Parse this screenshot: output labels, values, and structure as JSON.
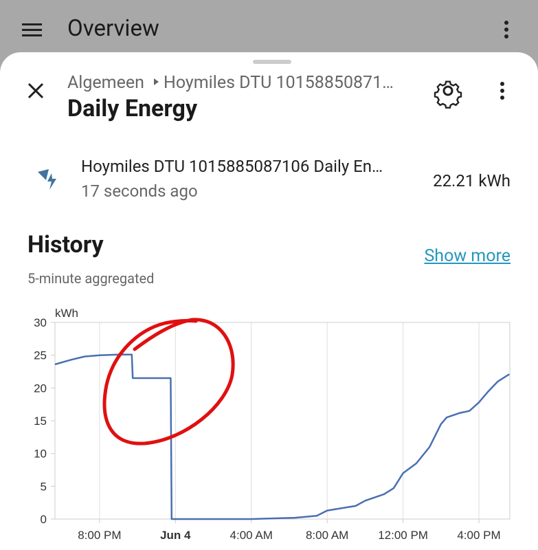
{
  "topbar": {
    "title": "Overview"
  },
  "dialog": {
    "breadcrumb": [
      "Algemeen",
      "Hoymiles DTU 10158850871…"
    ],
    "title": "Daily Energy"
  },
  "entity": {
    "name": "Hoymiles DTU 1015885087106 Daily En…",
    "updated": "17 seconds ago",
    "state": "22.21 kWh"
  },
  "history": {
    "title": "History",
    "link": "Show more",
    "subtitle": "5-minute aggregated"
  },
  "chart_data": {
    "type": "line",
    "y_label": "kWh",
    "color": "#4a6fb0",
    "x": [
      17.65,
      18.5,
      19.2,
      20,
      21,
      21.7,
      21.75,
      23.75,
      23.8,
      28,
      30.3,
      31.45,
      32,
      33.5,
      34,
      35,
      35.5,
      36,
      36.7,
      37.4,
      38,
      38.3,
      39,
      39.5,
      40,
      40.5,
      41,
      41.6
    ],
    "values": [
      23.6,
      24.3,
      24.8,
      25.0,
      25.1,
      25.1,
      21.5,
      21.5,
      0,
      0,
      0.2,
      0.5,
      1.3,
      2.0,
      2.8,
      3.8,
      4.7,
      7.0,
      8.5,
      11,
      14.5,
      15.5,
      16.2,
      16.5,
      17.8,
      19.5,
      21,
      22.1
    ],
    "xlim": [
      17.65,
      41.63
    ],
    "xticks": [
      {
        "value": 20,
        "label": "8:00 PM"
      },
      {
        "value": 24,
        "label": "Jun 4"
      },
      {
        "value": 28,
        "label": "4:00 AM"
      },
      {
        "value": 32,
        "label": "8:00 AM"
      },
      {
        "value": 36,
        "label": "12:00 PM"
      },
      {
        "value": 40,
        "label": "4:00 PM"
      }
    ],
    "ylim": [
      0,
      30
    ],
    "yticks": [
      0,
      5,
      10,
      15,
      20,
      25,
      30
    ],
    "grid": true
  }
}
